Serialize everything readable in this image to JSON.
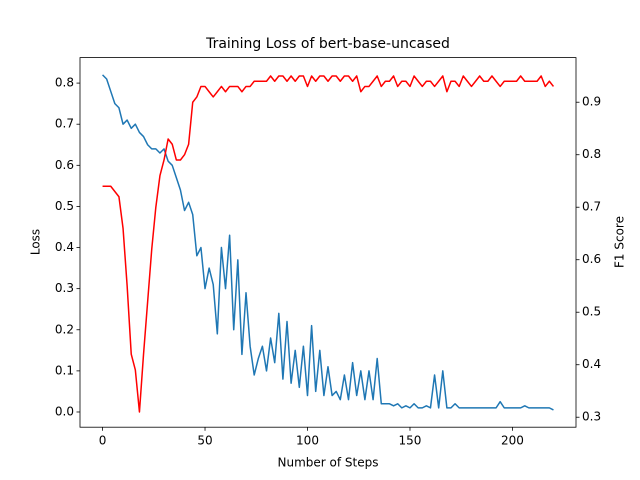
{
  "chart_data": {
    "type": "line",
    "title": "Training Loss of bert-base-uncased",
    "x_label": "Number of Steps",
    "y_label": "Loss",
    "y2_label": "F1 Score",
    "x": [
      0,
      2,
      4,
      6,
      8,
      10,
      12,
      14,
      16,
      18,
      20,
      22,
      24,
      26,
      28,
      30,
      32,
      34,
      36,
      38,
      40,
      42,
      44,
      46,
      48,
      50,
      52,
      54,
      56,
      58,
      60,
      62,
      64,
      66,
      68,
      70,
      72,
      74,
      76,
      78,
      80,
      82,
      84,
      86,
      88,
      90,
      92,
      94,
      96,
      98,
      100,
      102,
      104,
      106,
      108,
      110,
      112,
      114,
      116,
      118,
      120,
      122,
      124,
      126,
      128,
      130,
      132,
      134,
      136,
      138,
      140,
      142,
      144,
      146,
      148,
      150,
      152,
      154,
      156,
      158,
      160,
      162,
      164,
      166,
      168,
      170,
      172,
      174,
      176,
      178,
      180,
      182,
      184,
      186,
      188,
      190,
      192,
      194,
      196,
      198,
      200,
      202,
      204,
      206,
      208,
      210,
      212,
      214,
      216,
      218,
      220
    ],
    "series": [
      {
        "name": "Loss",
        "color": "#1f77b4",
        "axis": "y",
        "values": [
          0.82,
          0.81,
          0.78,
          0.75,
          0.74,
          0.7,
          0.71,
          0.69,
          0.7,
          0.68,
          0.67,
          0.65,
          0.64,
          0.64,
          0.63,
          0.64,
          0.61,
          0.6,
          0.57,
          0.54,
          0.49,
          0.51,
          0.48,
          0.38,
          0.4,
          0.3,
          0.35,
          0.31,
          0.19,
          0.4,
          0.3,
          0.43,
          0.2,
          0.37,
          0.14,
          0.29,
          0.16,
          0.09,
          0.13,
          0.16,
          0.1,
          0.18,
          0.12,
          0.24,
          0.08,
          0.22,
          0.07,
          0.15,
          0.06,
          0.16,
          0.04,
          0.21,
          0.05,
          0.15,
          0.04,
          0.11,
          0.04,
          0.05,
          0.03,
          0.09,
          0.03,
          0.12,
          0.04,
          0.1,
          0.03,
          0.1,
          0.03,
          0.13,
          0.02,
          0.02,
          0.02,
          0.015,
          0.02,
          0.01,
          0.015,
          0.01,
          0.02,
          0.01,
          0.01,
          0.015,
          0.01,
          0.09,
          0.01,
          0.1,
          0.01,
          0.01,
          0.02,
          0.01,
          0.01,
          0.01,
          0.01,
          0.01,
          0.01,
          0.01,
          0.01,
          0.01,
          0.01,
          0.025,
          0.01,
          0.01,
          0.01,
          0.01,
          0.01,
          0.015,
          0.01,
          0.01,
          0.01,
          0.01,
          0.01,
          0.01,
          0.005
        ]
      },
      {
        "name": "F1 Score",
        "color": "#ff0000",
        "axis": "y2",
        "values": [
          0.74,
          0.74,
          0.74,
          0.73,
          0.72,
          0.66,
          0.55,
          0.42,
          0.39,
          0.31,
          0.42,
          0.52,
          0.62,
          0.7,
          0.76,
          0.79,
          0.83,
          0.82,
          0.79,
          0.79,
          0.8,
          0.82,
          0.9,
          0.91,
          0.93,
          0.93,
          0.92,
          0.91,
          0.92,
          0.93,
          0.92,
          0.93,
          0.93,
          0.93,
          0.92,
          0.93,
          0.93,
          0.94,
          0.94,
          0.94,
          0.94,
          0.95,
          0.94,
          0.95,
          0.95,
          0.94,
          0.95,
          0.94,
          0.95,
          0.95,
          0.93,
          0.95,
          0.94,
          0.95,
          0.95,
          0.94,
          0.95,
          0.95,
          0.94,
          0.95,
          0.95,
          0.94,
          0.95,
          0.92,
          0.93,
          0.93,
          0.94,
          0.95,
          0.93,
          0.94,
          0.94,
          0.95,
          0.93,
          0.94,
          0.94,
          0.93,
          0.95,
          0.94,
          0.93,
          0.94,
          0.94,
          0.93,
          0.94,
          0.95,
          0.92,
          0.94,
          0.94,
          0.93,
          0.95,
          0.94,
          0.93,
          0.94,
          0.95,
          0.94,
          0.94,
          0.95,
          0.94,
          0.93,
          0.94,
          0.94,
          0.94,
          0.94,
          0.95,
          0.94,
          0.94,
          0.94,
          0.94,
          0.95,
          0.93,
          0.94,
          0.93
        ]
      }
    ],
    "xlim": [
      -11,
      231
    ],
    "xticks": [
      0,
      50,
      100,
      150,
      200
    ],
    "ylim": [
      -0.037,
      0.862
    ],
    "yticks": [
      {
        "value": 0,
        "label": "0.0"
      },
      0.1,
      0.2,
      0.3,
      0.4,
      0.5,
      0.6,
      0.7,
      0.8
    ],
    "y2lim": [
      0.281,
      0.985
    ],
    "y2ticks": [
      0.3,
      0.4,
      0.5,
      0.6,
      0.7,
      0.8,
      0.9
    ]
  }
}
